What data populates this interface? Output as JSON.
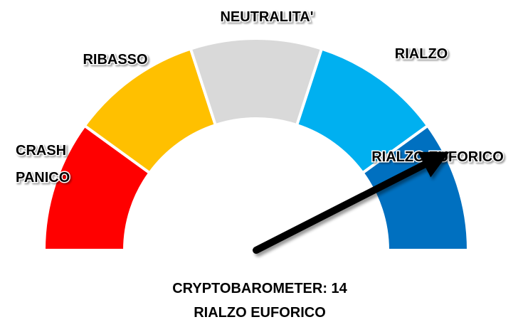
{
  "chart_data": {
    "type": "gauge",
    "categories": [
      [
        "CRASH",
        "PANICO"
      ],
      [
        "RIBASSO"
      ],
      [
        "NEUTRALITA'"
      ],
      [
        "RIALZO"
      ],
      [
        "RIALZO EUFORICO"
      ]
    ],
    "colors": [
      "#ff0000",
      "#ffc000",
      "#d9d9d9",
      "#00b0f0",
      "#0070c0"
    ],
    "ylim": [
      -20,
      20
    ],
    "value": 14,
    "value_label": "CRYPTOBAROMETER: 14",
    "status": "RIALZO EUFORICO"
  }
}
